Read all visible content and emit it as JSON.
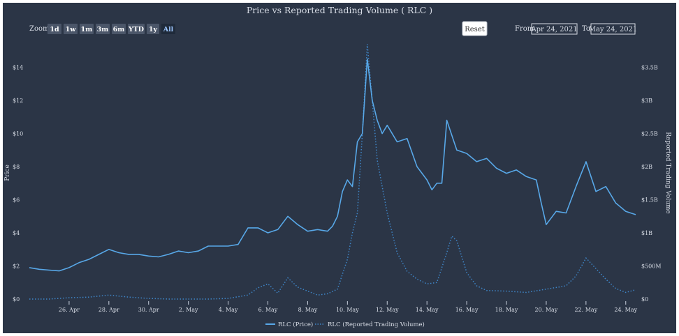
{
  "title": "Price vs Reported Trading Volume ( RLC )",
  "zoom": {
    "label": "Zoom",
    "buttons": [
      "1d",
      "1w",
      "1m",
      "3m",
      "6m",
      "YTD",
      "1y",
      "All"
    ],
    "active": "All"
  },
  "reset_label": "Reset",
  "range": {
    "from_label": "From",
    "from_value": "Apr 24, 2021",
    "to_label": "To",
    "to_value": "May 24, 2021"
  },
  "colors": {
    "background": "#2b3546",
    "price": "#58a8e8",
    "volume": "#3f86c8",
    "text": "#d8dde6"
  },
  "chart_data": {
    "type": "line",
    "title": "Price vs Reported Trading Volume ( RLC )",
    "x_tick_labels": [
      "26. Apr",
      "28. Apr",
      "30. Apr",
      "2. May",
      "4. May",
      "6. May",
      "8. May",
      "10. May",
      "12. May",
      "14. May",
      "16. May",
      "18. May",
      "20. May",
      "22. May",
      "24. May"
    ],
    "x_range": [
      "2021-04-24",
      "2021-05-24"
    ],
    "y_left": {
      "label": "Price",
      "ticks": [
        "$0",
        "$2",
        "$4",
        "$6",
        "$8",
        "$10",
        "$12",
        "$14"
      ],
      "range": [
        0,
        15.5
      ]
    },
    "y_right": {
      "label": "Reported Trading Volume",
      "ticks": [
        "$0",
        "$500M",
        "$1B",
        "$1.5B",
        "$2B",
        "$2.5B",
        "$3B",
        "$3.5B"
      ],
      "range": [
        0,
        3875000000
      ]
    },
    "legend_position": "bottom-center",
    "series": [
      {
        "name": "RLC (Price)",
        "style": "solid",
        "axis": "left",
        "x": [
          "2021-04-24",
          "2021-04-24 12:00",
          "2021-04-25",
          "2021-04-25 12:00",
          "2021-04-26",
          "2021-04-26 12:00",
          "2021-04-27",
          "2021-04-27 12:00",
          "2021-04-28",
          "2021-04-28 12:00",
          "2021-04-29",
          "2021-04-29 12:00",
          "2021-04-30",
          "2021-04-30 12:00",
          "2021-05-01",
          "2021-05-01 12:00",
          "2021-05-02",
          "2021-05-02 12:00",
          "2021-05-03",
          "2021-05-03 12:00",
          "2021-05-04",
          "2021-05-04 12:00",
          "2021-05-05",
          "2021-05-05 12:00",
          "2021-05-06",
          "2021-05-06 12:00",
          "2021-05-07",
          "2021-05-07 12:00",
          "2021-05-08",
          "2021-05-08 12:00",
          "2021-05-09",
          "2021-05-09 06:00",
          "2021-05-09 12:00",
          "2021-05-09 18:00",
          "2021-05-10",
          "2021-05-10 06:00",
          "2021-05-10 12:00",
          "2021-05-10 18:00",
          "2021-05-11",
          "2021-05-11 06:00",
          "2021-05-11 12:00",
          "2021-05-11 18:00",
          "2021-05-12",
          "2021-05-12 12:00",
          "2021-05-13",
          "2021-05-13 12:00",
          "2021-05-14",
          "2021-05-14 06:00",
          "2021-05-14 12:00",
          "2021-05-14 18:00",
          "2021-05-15",
          "2021-05-15 12:00",
          "2021-05-16",
          "2021-05-16 12:00",
          "2021-05-17",
          "2021-05-17 12:00",
          "2021-05-18",
          "2021-05-18 12:00",
          "2021-05-19",
          "2021-05-19 12:00",
          "2021-05-19 18:00",
          "2021-05-20",
          "2021-05-20 12:00",
          "2021-05-21",
          "2021-05-21 12:00",
          "2021-05-22",
          "2021-05-22 12:00",
          "2021-05-23",
          "2021-05-23 12:00",
          "2021-05-24",
          "2021-05-24 12:00"
        ],
        "y": [
          1.9,
          1.8,
          1.75,
          1.7,
          1.9,
          2.2,
          2.4,
          2.7,
          3.0,
          2.8,
          2.7,
          2.7,
          2.6,
          2.55,
          2.7,
          2.9,
          2.8,
          2.9,
          3.2,
          3.2,
          3.2,
          3.3,
          4.3,
          4.3,
          4.0,
          4.2,
          5.0,
          4.5,
          4.1,
          4.2,
          4.1,
          4.4,
          5.0,
          6.5,
          7.2,
          6.8,
          9.5,
          10.0,
          14.5,
          12.0,
          10.8,
          10.0,
          10.5,
          9.5,
          9.7,
          8.0,
          7.2,
          6.6,
          7.0,
          7.0,
          10.8,
          9.0,
          8.8,
          8.3,
          8.5,
          7.9,
          7.6,
          7.8,
          7.4,
          7.2,
          5.8,
          4.5,
          5.3,
          5.2,
          6.8,
          8.3,
          6.5,
          6.8,
          5.8,
          5.3,
          5.1
        ]
      },
      {
        "name": "RLC (Reported Trading Volume)",
        "style": "dotted",
        "axis": "right",
        "x": [
          "2021-04-24",
          "2021-04-25",
          "2021-04-26",
          "2021-04-27",
          "2021-04-28",
          "2021-04-29",
          "2021-04-30",
          "2021-05-01",
          "2021-05-02",
          "2021-05-03",
          "2021-05-04",
          "2021-05-05",
          "2021-05-05 12:00",
          "2021-05-06",
          "2021-05-06 12:00",
          "2021-05-07",
          "2021-05-07 12:00",
          "2021-05-08",
          "2021-05-08 12:00",
          "2021-05-09",
          "2021-05-09 12:00",
          "2021-05-10",
          "2021-05-10 06:00",
          "2021-05-10 12:00",
          "2021-05-10 18:00",
          "2021-05-11",
          "2021-05-11 06:00",
          "2021-05-11 12:00",
          "2021-05-11 18:00",
          "2021-05-12",
          "2021-05-12 12:00",
          "2021-05-13",
          "2021-05-13 12:00",
          "2021-05-14",
          "2021-05-14 12:00",
          "2021-05-15",
          "2021-05-15 06:00",
          "2021-05-15 12:00",
          "2021-05-16",
          "2021-05-16 12:00",
          "2021-05-17",
          "2021-05-18",
          "2021-05-19",
          "2021-05-20",
          "2021-05-21",
          "2021-05-21 12:00",
          "2021-05-22",
          "2021-05-22 12:00",
          "2021-05-23",
          "2021-05-23 12:00",
          "2021-05-24",
          "2021-05-24 12:00"
        ],
        "y": [
          0,
          0,
          20000000,
          30000000,
          60000000,
          30000000,
          10000000,
          0,
          0,
          0,
          10000000,
          60000000,
          170000000,
          230000000,
          90000000,
          320000000,
          180000000,
          120000000,
          60000000,
          80000000,
          150000000,
          600000000,
          1000000000,
          1300000000,
          2500000000,
          3850000000,
          3000000000,
          2100000000,
          1700000000,
          1300000000,
          700000000,
          420000000,
          300000000,
          230000000,
          250000000,
          700000000,
          950000000,
          880000000,
          400000000,
          200000000,
          130000000,
          120000000,
          100000000,
          150000000,
          200000000,
          350000000,
          620000000,
          460000000,
          300000000,
          160000000,
          100000000,
          140000000
        ]
      }
    ]
  }
}
